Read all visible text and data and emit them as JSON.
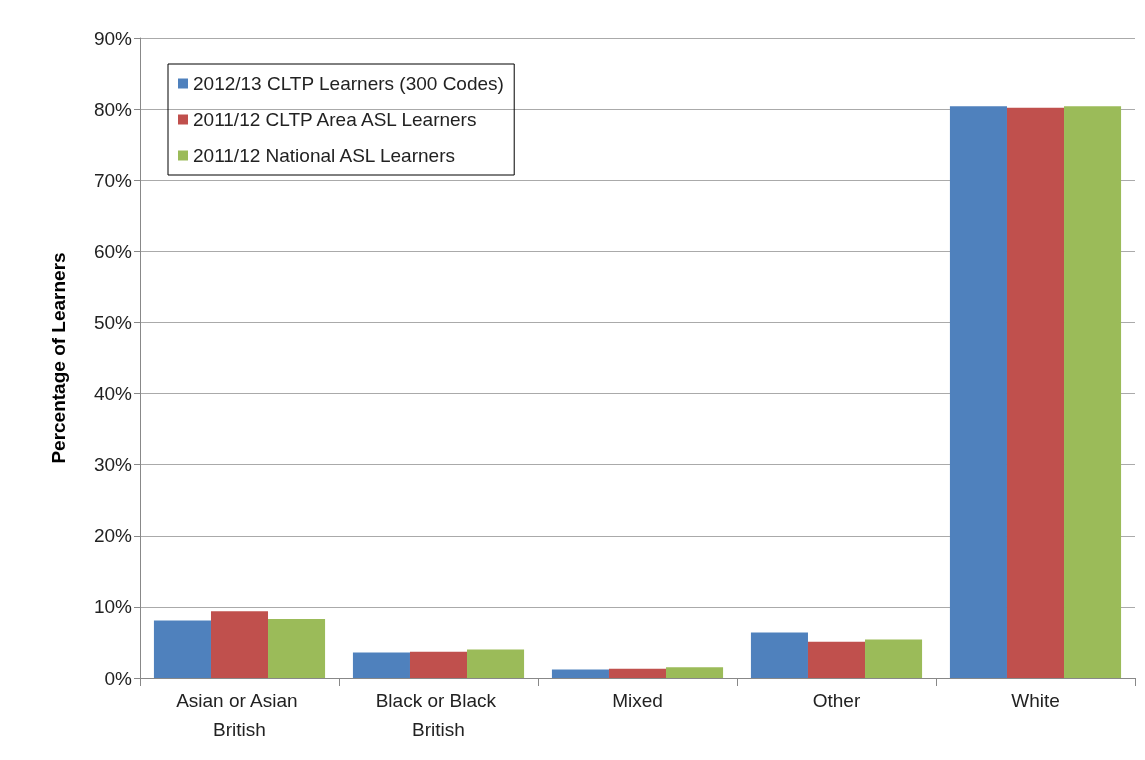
{
  "chart_data": {
    "type": "bar",
    "ylabel": "Percentage of Learners",
    "categories": [
      "Asian or Asian British",
      "Black or Black British",
      "Mixed",
      "Other",
      "White"
    ],
    "series": [
      {
        "name": "2012/13 CLTP Learners (300 Codes)",
        "color": "#4f81bd",
        "values": [
          8.1,
          3.6,
          1.2,
          6.4,
          80.4
        ]
      },
      {
        "name": "2011/12 CLTP Area ASL Learners",
        "color": "#c0504d",
        "values": [
          9.4,
          3.7,
          1.3,
          5.1,
          80.2
        ]
      },
      {
        "name": "2011/12 National ASL Learners",
        "color": "#9bbb59",
        "values": [
          8.3,
          4.0,
          1.5,
          5.4,
          80.4
        ]
      }
    ],
    "ylim": [
      0,
      90
    ],
    "yticks": [
      {
        "value": 0,
        "label": "0%"
      },
      {
        "value": 10,
        "label": "10%"
      },
      {
        "value": 20,
        "label": "20%"
      },
      {
        "value": 30,
        "label": "30%"
      },
      {
        "value": 40,
        "label": "40%"
      },
      {
        "value": 50,
        "label": "50%"
      },
      {
        "value": 60,
        "label": "60%"
      },
      {
        "value": 70,
        "label": "70%"
      },
      {
        "value": 80,
        "label": "80%"
      },
      {
        "value": 90,
        "label": "90%"
      }
    ],
    "grid": "y",
    "legend": "top left"
  }
}
